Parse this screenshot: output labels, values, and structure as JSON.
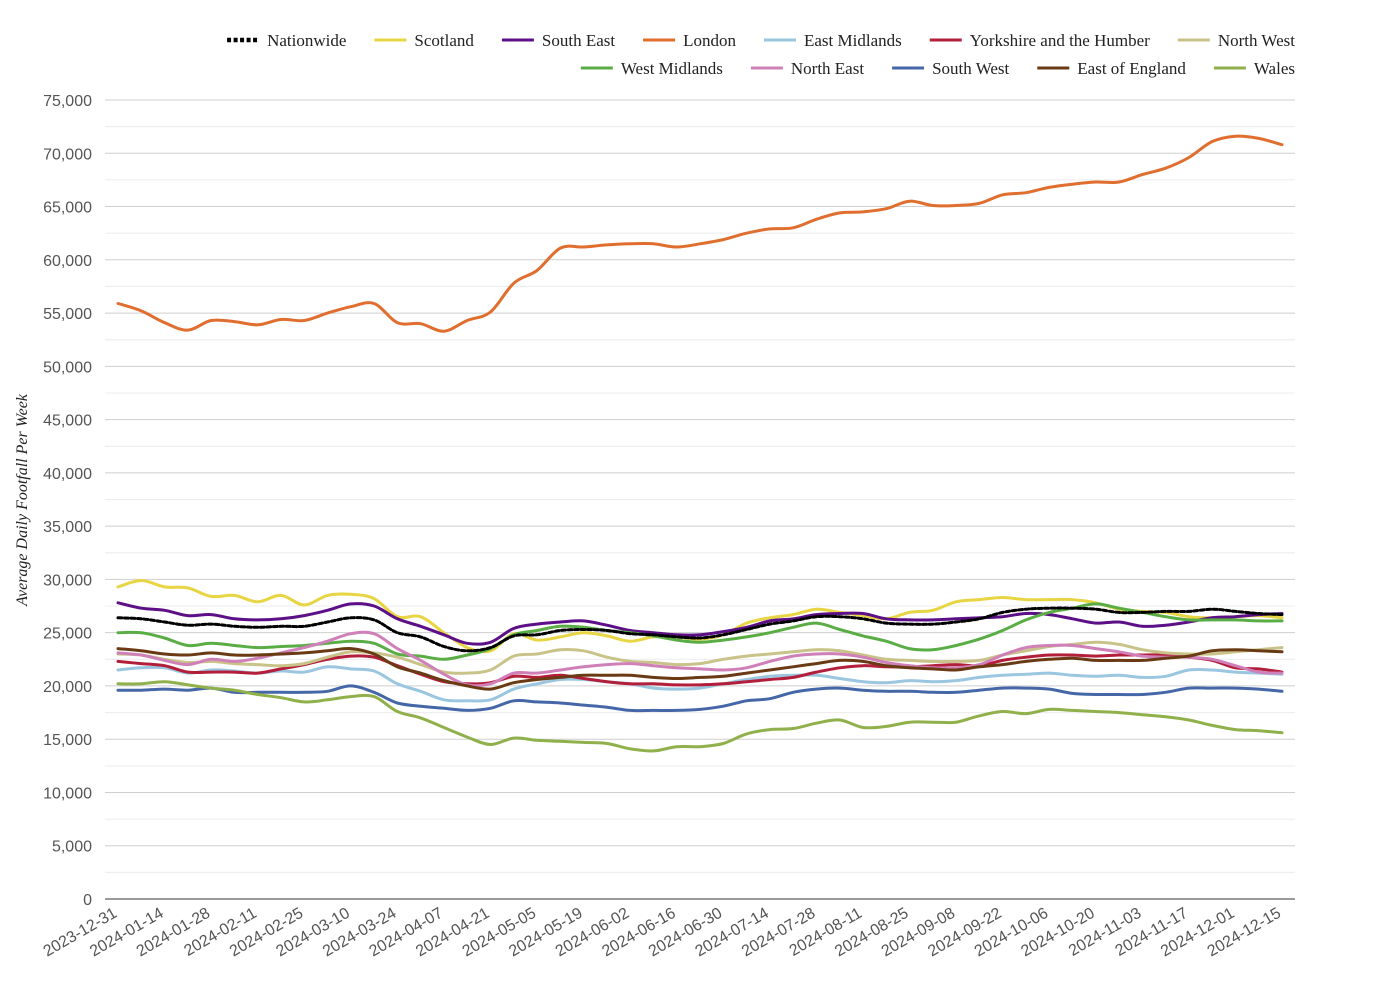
{
  "chart_data": {
    "type": "line",
    "title": "",
    "xlabel": "",
    "ylabel": "Average Daily Footfall Per Week",
    "ylim": [
      0,
      75000
    ],
    "yticks": [
      0,
      5000,
      10000,
      15000,
      20000,
      25000,
      30000,
      35000,
      40000,
      45000,
      50000,
      55000,
      60000,
      65000,
      70000,
      75000
    ],
    "ytick_labels": [
      "0",
      "5,000",
      "10,000",
      "15,000",
      "20,000",
      "25,000",
      "30,000",
      "35,000",
      "40,000",
      "45,000",
      "50,000",
      "55,000",
      "60,000",
      "65,000",
      "70,000",
      "75,000"
    ],
    "grid": true,
    "legend_position": "top",
    "x_tick_labels": [
      "2023-12-31",
      "2024-01-14",
      "2024-01-28",
      "2024-02-11",
      "2024-02-25",
      "2024-03-10",
      "2024-03-24",
      "2024-04-07",
      "2024-04-21",
      "2024-05-05",
      "2024-05-19",
      "2024-06-02",
      "2024-06-16",
      "2024-06-30",
      "2024-07-14",
      "2024-07-28",
      "2024-08-11",
      "2024-08-25",
      "2024-09-08",
      "2024-09-22",
      "2024-10-06",
      "2024-10-20",
      "2024-11-03",
      "2024-11-17",
      "2024-12-01",
      "2024-12-15"
    ],
    "x": [
      "2023-12-31",
      "2024-01-07",
      "2024-01-14",
      "2024-01-21",
      "2024-01-28",
      "2024-02-04",
      "2024-02-11",
      "2024-02-18",
      "2024-02-25",
      "2024-03-03",
      "2024-03-10",
      "2024-03-17",
      "2024-03-24",
      "2024-03-31",
      "2024-04-07",
      "2024-04-14",
      "2024-04-21",
      "2024-04-28",
      "2024-05-05",
      "2024-05-12",
      "2024-05-19",
      "2024-05-26",
      "2024-06-02",
      "2024-06-09",
      "2024-06-16",
      "2024-06-23",
      "2024-06-30",
      "2024-07-07",
      "2024-07-14",
      "2024-07-21",
      "2024-07-28",
      "2024-08-04",
      "2024-08-11",
      "2024-08-18",
      "2024-08-25",
      "2024-09-01",
      "2024-09-08",
      "2024-09-15",
      "2024-09-22",
      "2024-09-29",
      "2024-10-06",
      "2024-10-13",
      "2024-10-20",
      "2024-10-27",
      "2024-11-03",
      "2024-11-10",
      "2024-11-17",
      "2024-11-24",
      "2024-12-01",
      "2024-12-08",
      "2024-12-15"
    ],
    "series": [
      {
        "name": "Nationwide",
        "color": "#000000",
        "dashed": true,
        "values": [
          26400,
          26300,
          26000,
          25700,
          25800,
          25600,
          25500,
          25600,
          25600,
          26000,
          26400,
          26200,
          25000,
          24600,
          23700,
          23300,
          23600,
          24700,
          24800,
          25200,
          25300,
          25200,
          24900,
          24800,
          24600,
          24500,
          24800,
          25300,
          25800,
          26100,
          26500,
          26500,
          26300,
          25900,
          25800,
          25800,
          26000,
          26300,
          26900,
          27200,
          27300,
          27300,
          27200,
          26900,
          26900,
          27000,
          27000,
          27200,
          27000,
          26800,
          26700
        ]
      },
      {
        "name": "Scotland",
        "color": "#e8d543",
        "values": [
          29300,
          29900,
          29300,
          29200,
          28400,
          28500,
          27900,
          28500,
          27600,
          28500,
          28600,
          28200,
          26500,
          26500,
          25000,
          23600,
          23300,
          24900,
          24300,
          24600,
          25000,
          24700,
          24200,
          24600,
          24600,
          24400,
          24800,
          25900,
          26400,
          26700,
          27200,
          26900,
          26600,
          26300,
          26900,
          27100,
          27900,
          28100,
          28300,
          28100,
          28100,
          28100,
          27800,
          27200,
          27000,
          26900,
          26500,
          26400,
          26500,
          26600,
          26400
        ]
      },
      {
        "name": "South East",
        "color": "#5c0f86",
        "values": [
          27800,
          27300,
          27100,
          26600,
          26700,
          26300,
          26200,
          26300,
          26600,
          27100,
          27700,
          27500,
          26300,
          25600,
          24800,
          24000,
          24100,
          25400,
          25800,
          26000,
          26100,
          25700,
          25200,
          25000,
          24800,
          24800,
          25100,
          25500,
          26100,
          26300,
          26700,
          26800,
          26800,
          26300,
          26200,
          26200,
          26300,
          26400,
          26500,
          26800,
          26700,
          26300,
          25900,
          26000,
          25600,
          25700,
          26000,
          26400,
          26500,
          26700,
          26800
        ]
      },
      {
        "name": "London",
        "color": "#e06e2e",
        "values": [
          55900,
          55200,
          54100,
          53400,
          54300,
          54200,
          53900,
          54400,
          54300,
          55000,
          55600,
          55900,
          54100,
          54000,
          53300,
          54300,
          55100,
          57800,
          59000,
          61100,
          61200,
          61400,
          61500,
          61500,
          61200,
          61500,
          61900,
          62500,
          62900,
          63000,
          63800,
          64400,
          64500,
          64800,
          65500,
          65100,
          65100,
          65300,
          66100,
          66300,
          66800,
          67100,
          67300,
          67300,
          68000,
          68600,
          69600,
          71100,
          71600,
          71400,
          70800
        ]
      },
      {
        "name": "East Midlands",
        "color": "#9ac6e0",
        "values": [
          21500,
          21700,
          21700,
          21200,
          21500,
          21400,
          21200,
          21400,
          21300,
          21800,
          21600,
          21400,
          20200,
          19500,
          18700,
          18600,
          18700,
          19700,
          20200,
          20600,
          20600,
          20400,
          20200,
          19800,
          19700,
          19800,
          20200,
          20600,
          20900,
          21000,
          21000,
          20700,
          20400,
          20300,
          20500,
          20400,
          20500,
          20800,
          21000,
          21100,
          21200,
          21000,
          20900,
          21000,
          20800,
          20900,
          21500,
          21500,
          21300,
          21200,
          21100
        ]
      },
      {
        "name": "Yorkshire and the Humber",
        "color": "#b31e3b",
        "values": [
          22300,
          22100,
          21900,
          21300,
          21300,
          21300,
          21200,
          21600,
          22000,
          22500,
          22800,
          22700,
          21900,
          21100,
          20400,
          20200,
          20300,
          20900,
          20800,
          21000,
          20700,
          20400,
          20200,
          20200,
          20100,
          20100,
          20200,
          20400,
          20600,
          20800,
          21300,
          21700,
          21900,
          21800,
          21800,
          21900,
          22000,
          21900,
          22400,
          22700,
          22900,
          22900,
          22800,
          22900,
          22900,
          22900,
          22700,
          22400,
          21700,
          21600,
          21300
        ]
      },
      {
        "name": "North West",
        "color": "#c9c38a",
        "values": [
          23000,
          22900,
          22500,
          22200,
          22300,
          22100,
          22000,
          21900,
          22100,
          22700,
          23200,
          23100,
          22700,
          22000,
          21300,
          21200,
          21500,
          22800,
          23000,
          23400,
          23300,
          22700,
          22300,
          22200,
          22000,
          22100,
          22500,
          22800,
          23000,
          23200,
          23400,
          23300,
          22900,
          22500,
          22400,
          22300,
          22300,
          22400,
          22900,
          23300,
          23700,
          23900,
          24100,
          23900,
          23400,
          23100,
          23000,
          23000,
          23200,
          23400,
          23600
        ]
      },
      {
        "name": "West Midlands",
        "color": "#5aad45",
        "values": [
          25000,
          25000,
          24500,
          23800,
          24000,
          23800,
          23600,
          23700,
          23800,
          24000,
          24200,
          24000,
          23000,
          22800,
          22500,
          22900,
          23500,
          24800,
          25200,
          25600,
          25500,
          25200,
          25000,
          24700,
          24300,
          24100,
          24300,
          24600,
          25000,
          25500,
          25900,
          25300,
          24700,
          24200,
          23500,
          23400,
          23800,
          24400,
          25200,
          26200,
          26900,
          27300,
          27700,
          27300,
          26900,
          26500,
          26200,
          26200,
          26200,
          26100,
          26100
        ]
      },
      {
        "name": "North East",
        "color": "#d080b8",
        "values": [
          23100,
          22900,
          22400,
          22000,
          22500,
          22300,
          22600,
          23100,
          23600,
          24200,
          24900,
          24900,
          23500,
          22400,
          21100,
          20100,
          20200,
          21200,
          21200,
          21500,
          21800,
          22000,
          22100,
          21900,
          21700,
          21600,
          21500,
          21700,
          22300,
          22800,
          23000,
          23000,
          22700,
          22200,
          21900,
          21700,
          21700,
          22000,
          22900,
          23600,
          23800,
          23800,
          23500,
          23200,
          22800,
          22700,
          22700,
          22500,
          21900,
          21300,
          21200
        ]
      },
      {
        "name": "South West",
        "color": "#4567a8",
        "values": [
          19600,
          19600,
          19700,
          19600,
          19800,
          19400,
          19400,
          19400,
          19400,
          19500,
          20000,
          19400,
          18400,
          18100,
          17900,
          17700,
          17900,
          18600,
          18500,
          18400,
          18200,
          18000,
          17700,
          17700,
          17700,
          17800,
          18100,
          18600,
          18800,
          19400,
          19700,
          19800,
          19600,
          19500,
          19500,
          19400,
          19400,
          19600,
          19800,
          19800,
          19700,
          19300,
          19200,
          19200,
          19200,
          19400,
          19800,
          19800,
          19800,
          19700,
          19500
        ]
      },
      {
        "name": "East of England",
        "color": "#693a14",
        "values": [
          23500,
          23300,
          23000,
          22900,
          23100,
          22900,
          22900,
          23000,
          23100,
          23300,
          23500,
          23000,
          21800,
          21200,
          20500,
          20000,
          19700,
          20300,
          20600,
          20800,
          21000,
          21000,
          21000,
          20800,
          20700,
          20800,
          20900,
          21200,
          21500,
          21800,
          22100,
          22400,
          22300,
          21900,
          21700,
          21600,
          21500,
          21800,
          22000,
          22300,
          22500,
          22600,
          22400,
          22400,
          22400,
          22600,
          22800,
          23300,
          23400,
          23300,
          23200
        ]
      },
      {
        "name": "Wales",
        "color": "#8fb04a",
        "values": [
          20200,
          20200,
          20400,
          20100,
          19800,
          19600,
          19200,
          18900,
          18500,
          18700,
          19000,
          19000,
          17600,
          17000,
          16100,
          15200,
          14500,
          15100,
          14900,
          14800,
          14700,
          14600,
          14100,
          13900,
          14300,
          14300,
          14600,
          15500,
          15900,
          16000,
          16500,
          16800,
          16100,
          16200,
          16600,
          16600,
          16600,
          17200,
          17600,
          17400,
          17800,
          17700,
          17600,
          17500,
          17300,
          17100,
          16800,
          16300,
          15900,
          15800,
          15600
        ]
      }
    ]
  }
}
